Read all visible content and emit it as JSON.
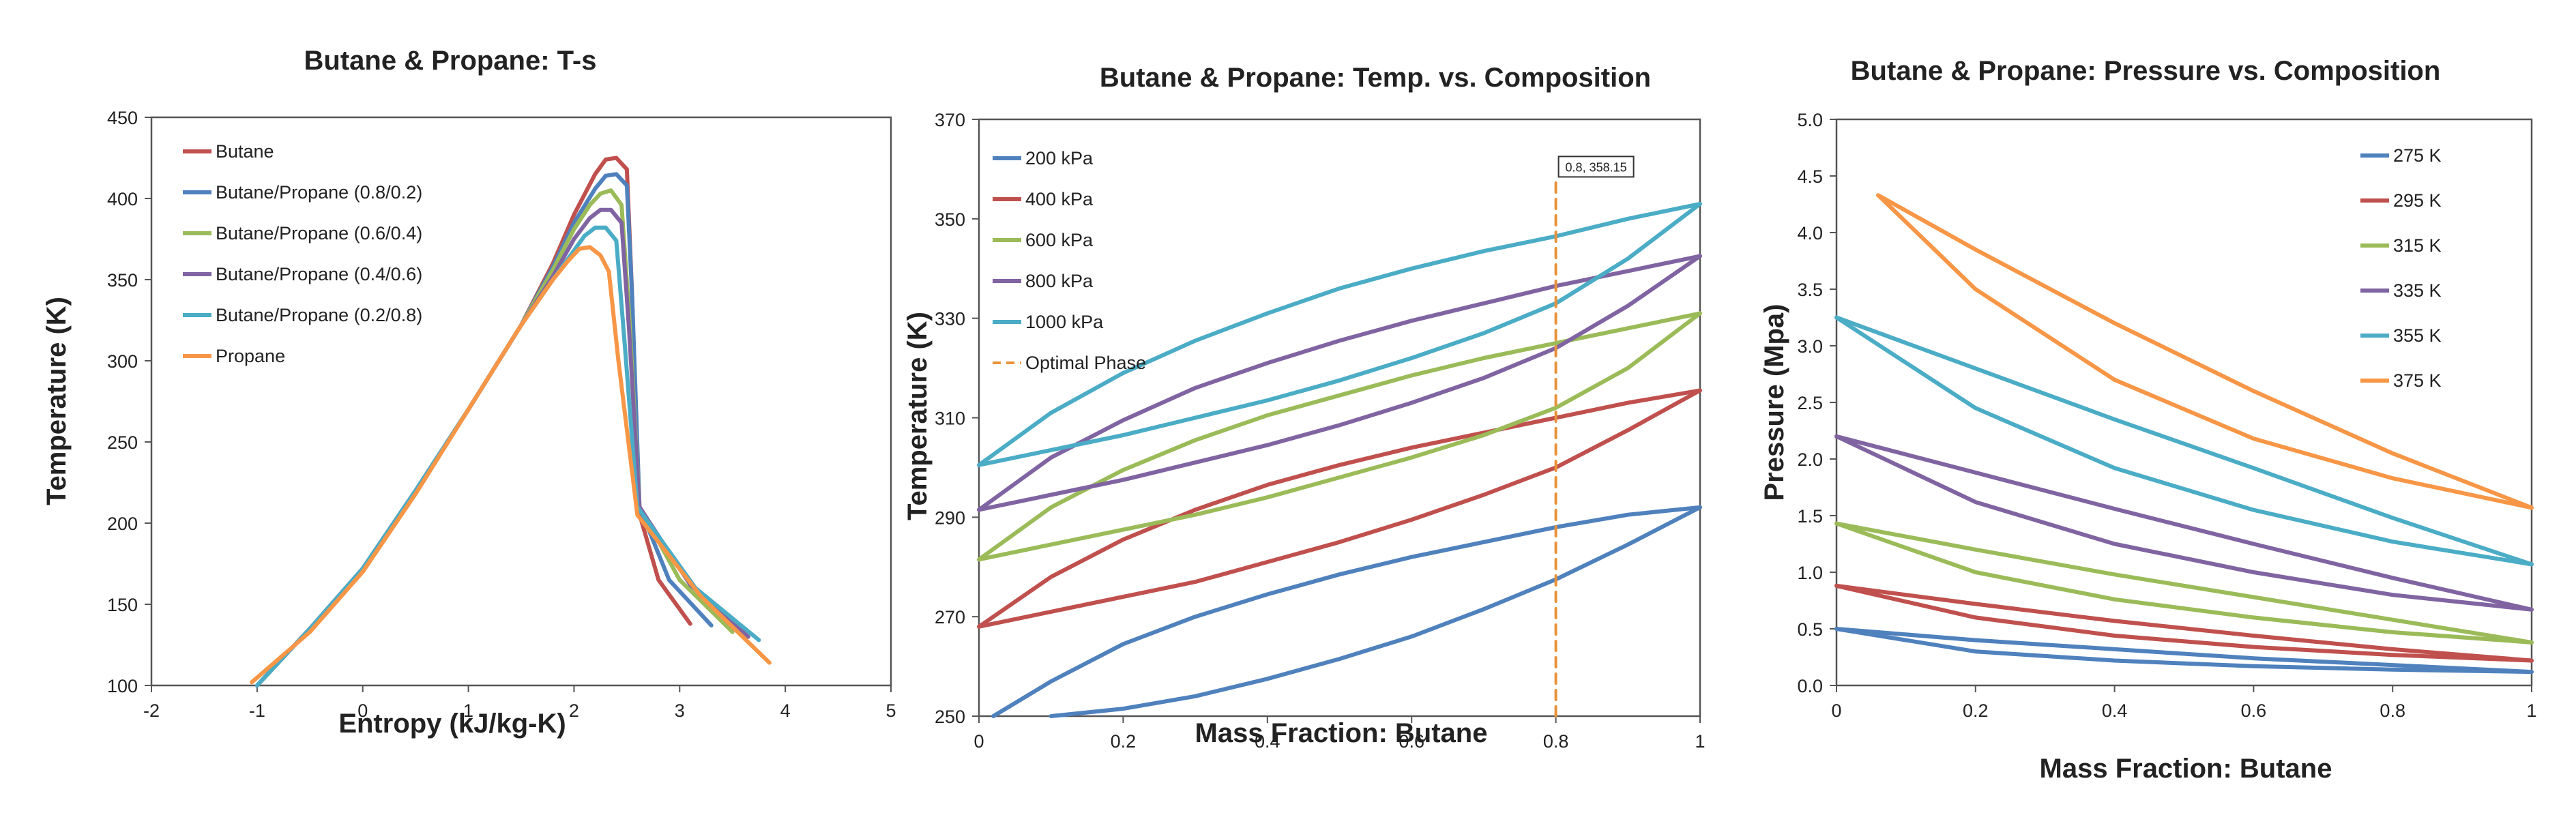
{
  "chart_data": [
    {
      "type": "line",
      "title": "Butane & Propane: T-s",
      "xlabel": "Entropy (kJ/kg-K)",
      "ylabel": "Temperature (K)",
      "xlim": [
        -2,
        5
      ],
      "ylim": [
        100,
        450
      ],
      "x_ticks": [
        "-2",
        "-1",
        "0",
        "1",
        "2",
        "3",
        "4",
        "5"
      ],
      "y_ticks": [
        "100",
        "150",
        "200",
        "250",
        "300",
        "350",
        "400",
        "450"
      ],
      "legend_position": "top-left",
      "series": [
        {
          "name": "Butane",
          "color": "#C0504D",
          "x": [
            -1.0,
            -0.5,
            0.0,
            0.5,
            1.0,
            1.5,
            1.8,
            2.0,
            2.2,
            2.3,
            2.4,
            2.5,
            2.55,
            2.6,
            2.8,
            3.1
          ],
          "y": [
            100,
            135,
            172,
            220,
            270,
            322,
            360,
            390,
            415,
            424,
            425,
            418,
            340,
            210,
            165,
            138
          ]
        },
        {
          "name": "Butane/Propane (0.8/0.2)",
          "color": "#4F81BD",
          "x": [
            -1.0,
            -0.5,
            0.0,
            0.5,
            1.0,
            1.5,
            1.8,
            2.0,
            2.2,
            2.3,
            2.4,
            2.5,
            2.55,
            2.62,
            2.9,
            3.3
          ],
          "y": [
            100,
            135,
            172,
            220,
            270,
            322,
            358,
            385,
            406,
            414,
            415,
            408,
            340,
            210,
            165,
            137
          ]
        },
        {
          "name": "Butane/Propane (0.6/0.4)",
          "color": "#9BBB59",
          "x": [
            -1.0,
            -0.5,
            0.0,
            0.5,
            1.0,
            1.5,
            1.8,
            2.0,
            2.15,
            2.25,
            2.35,
            2.45,
            2.52,
            2.62,
            3.0,
            3.5
          ],
          "y": [
            100,
            135,
            172,
            220,
            270,
            322,
            356,
            381,
            396,
            403,
            405,
            396,
            330,
            210,
            165,
            133
          ]
        },
        {
          "name": "Butane/Propane (0.4/0.6)",
          "color": "#8064A2",
          "x": [
            -1.0,
            -0.5,
            0.0,
            0.5,
            1.0,
            1.5,
            1.8,
            2.0,
            2.15,
            2.25,
            2.35,
            2.45,
            2.52,
            2.62,
            3.1,
            3.65
          ],
          "y": [
            100,
            135,
            172,
            220,
            270,
            322,
            352,
            375,
            388,
            393,
            393,
            385,
            320,
            210,
            162,
            130
          ]
        },
        {
          "name": "Butane/Propane (0.2/0.8)",
          "color": "#4BACC6",
          "x": [
            -1.0,
            -0.5,
            0.0,
            0.5,
            1.0,
            1.5,
            1.8,
            2.0,
            2.1,
            2.2,
            2.3,
            2.4,
            2.48,
            2.6,
            3.15,
            3.75
          ],
          "y": [
            100,
            135,
            172,
            220,
            270,
            322,
            350,
            368,
            377,
            382,
            382,
            374,
            310,
            210,
            160,
            128
          ]
        },
        {
          "name": "Propane",
          "color": "#F79646",
          "x": [
            -1.05,
            -0.5,
            0.0,
            0.5,
            1.0,
            1.5,
            1.8,
            1.95,
            2.05,
            2.15,
            2.25,
            2.33,
            2.42,
            2.6,
            3.2,
            3.85
          ],
          "y": [
            102,
            133,
            170,
            218,
            270,
            322,
            350,
            362,
            369,
            370,
            365,
            355,
            300,
            205,
            155,
            114
          ]
        }
      ]
    },
    {
      "type": "line",
      "title": "Butane & Propane: Temp. vs. Composition",
      "xlabel": "Mass Fraction: Butane",
      "ylabel": "Temperature (K)",
      "xlim": [
        0,
        1
      ],
      "ylim": [
        250,
        370
      ],
      "x_ticks": [
        "0",
        "0.2",
        "0.4",
        "0.6",
        "0.8",
        "1"
      ],
      "y_ticks": [
        "250",
        "270",
        "290",
        "310",
        "330",
        "350",
        "370"
      ],
      "legend_position": "top-left",
      "annotation": {
        "text": "0.8, 358.15",
        "x": 0.8,
        "y": 358.15
      },
      "series": [
        {
          "name": "200 kPa",
          "color": "#4F81BD",
          "lines": [
            {
              "x": [
                0.1,
                0.2,
                0.3,
                0.4,
                0.5,
                0.6,
                0.7,
                0.8,
                0.9,
                1.0
              ],
              "y": [
                250,
                251.5,
                254,
                257.5,
                261.5,
                266,
                271.5,
                277.5,
                284.5,
                292
              ]
            },
            {
              "x": [
                0.02,
                0.1,
                0.2,
                0.3,
                0.4,
                0.5,
                0.6,
                0.7,
                0.8,
                0.9,
                1.0
              ],
              "y": [
                250,
                257,
                264.5,
                270,
                274.5,
                278.5,
                282,
                285,
                288,
                290.5,
                292
              ]
            }
          ]
        },
        {
          "name": "400 kPa",
          "color": "#C0504D",
          "lines": [
            {
              "x": [
                0.0,
                0.1,
                0.2,
                0.3,
                0.4,
                0.5,
                0.6,
                0.7,
                0.8,
                0.9,
                1.0
              ],
              "y": [
                268,
                271,
                274,
                277,
                281,
                285,
                289.5,
                294.5,
                300,
                307.5,
                315.5
              ]
            },
            {
              "x": [
                0.0,
                0.1,
                0.2,
                0.3,
                0.4,
                0.5,
                0.6,
                0.7,
                0.8,
                0.9,
                1.0
              ],
              "y": [
                268,
                278,
                285.5,
                291.5,
                296.5,
                300.5,
                304,
                307,
                310,
                313,
                315.5
              ]
            }
          ]
        },
        {
          "name": "600 kPa",
          "color": "#9BBB59",
          "lines": [
            {
              "x": [
                0.0,
                0.1,
                0.2,
                0.3,
                0.4,
                0.5,
                0.6,
                0.7,
                0.8,
                0.9,
                1.0
              ],
              "y": [
                281.5,
                284.5,
                287.5,
                290.5,
                294,
                298,
                302,
                306.5,
                312,
                320,
                331
              ]
            },
            {
              "x": [
                0.0,
                0.1,
                0.2,
                0.3,
                0.4,
                0.5,
                0.6,
                0.7,
                0.8,
                0.9,
                1.0
              ],
              "y": [
                281.5,
                292,
                299.5,
                305.5,
                310.5,
                314.5,
                318.5,
                322,
                325,
                328,
                331
              ]
            }
          ]
        },
        {
          "name": "800 kPa",
          "color": "#8064A2",
          "lines": [
            {
              "x": [
                0.0,
                0.1,
                0.2,
                0.3,
                0.4,
                0.5,
                0.6,
                0.7,
                0.8,
                0.9,
                1.0
              ],
              "y": [
                291.5,
                294.5,
                297.5,
                301,
                304.5,
                308.5,
                313,
                318,
                324,
                332.5,
                342.5
              ]
            },
            {
              "x": [
                0.0,
                0.1,
                0.2,
                0.3,
                0.4,
                0.5,
                0.6,
                0.7,
                0.8,
                0.9,
                1.0
              ],
              "y": [
                291.5,
                302,
                309.5,
                316,
                321,
                325.5,
                329.5,
                333,
                336.5,
                339.5,
                342.5
              ]
            }
          ]
        },
        {
          "name": "1000 kPa",
          "color": "#4BACC6",
          "lines": [
            {
              "x": [
                0.0,
                0.1,
                0.2,
                0.3,
                0.4,
                0.5,
                0.6,
                0.7,
                0.8,
                0.9,
                1.0
              ],
              "y": [
                300.5,
                303.5,
                306.5,
                310,
                313.5,
                317.5,
                322,
                327,
                333,
                342,
                353
              ]
            },
            {
              "x": [
                0.0,
                0.1,
                0.2,
                0.3,
                0.4,
                0.5,
                0.6,
                0.7,
                0.8,
                0.9,
                1.0
              ],
              "y": [
                300.5,
                311,
                319,
                325.5,
                331,
                336,
                340,
                343.5,
                346.5,
                350,
                353
              ]
            }
          ]
        },
        {
          "name": "Optimal Phase",
          "color": "#E8923A",
          "dashed": true,
          "lines": [
            {
              "x": [
                0.8,
                0.8
              ],
              "y": [
                250,
                358.15
              ]
            }
          ]
        }
      ]
    },
    {
      "type": "line",
      "title": "Butane & Propane: Pressure vs. Composition",
      "xlabel": "Mass Fraction: Butane",
      "ylabel": "Pressure (Mpa)",
      "xlim": [
        0,
        1
      ],
      "ylim": [
        0,
        5
      ],
      "x_ticks": [
        "0",
        "0.2",
        "0.4",
        "0.6",
        "0.8",
        "1"
      ],
      "y_ticks": [
        "0.0",
        "0.5",
        "1.0",
        "1.5",
        "2.0",
        "2.5",
        "3.0",
        "3.5",
        "4.0",
        "4.5",
        "5.0"
      ],
      "legend_position": "top-right",
      "series": [
        {
          "name": "275 K",
          "color": "#4F81BD",
          "lines": [
            {
              "x": [
                0.0,
                0.2,
                0.4,
                0.6,
                0.8,
                1.0
              ],
              "y": [
                0.5,
                0.4,
                0.32,
                0.24,
                0.18,
                0.12
              ]
            },
            {
              "x": [
                0.0,
                0.2,
                0.4,
                0.6,
                0.8,
                1.0
              ],
              "y": [
                0.5,
                0.3,
                0.22,
                0.17,
                0.14,
                0.12
              ]
            }
          ]
        },
        {
          "name": "295 K",
          "color": "#C0504D",
          "lines": [
            {
              "x": [
                0.0,
                0.2,
                0.4,
                0.6,
                0.8,
                1.0
              ],
              "y": [
                0.88,
                0.72,
                0.57,
                0.44,
                0.32,
                0.22
              ]
            },
            {
              "x": [
                0.0,
                0.2,
                0.4,
                0.6,
                0.8,
                1.0
              ],
              "y": [
                0.88,
                0.6,
                0.44,
                0.34,
                0.27,
                0.22
              ]
            }
          ]
        },
        {
          "name": "315 K",
          "color": "#9BBB59",
          "lines": [
            {
              "x": [
                0.0,
                0.2,
                0.4,
                0.6,
                0.8,
                1.0
              ],
              "y": [
                1.43,
                1.2,
                0.98,
                0.78,
                0.58,
                0.38
              ]
            },
            {
              "x": [
                0.0,
                0.2,
                0.4,
                0.6,
                0.8,
                1.0
              ],
              "y": [
                1.43,
                1.0,
                0.76,
                0.6,
                0.47,
                0.38
              ]
            }
          ]
        },
        {
          "name": "335 K",
          "color": "#8064A2",
          "lines": [
            {
              "x": [
                0.0,
                0.2,
                0.4,
                0.6,
                0.8,
                1.0
              ],
              "y": [
                2.2,
                1.88,
                1.56,
                1.25,
                0.95,
                0.67
              ]
            },
            {
              "x": [
                0.0,
                0.2,
                0.4,
                0.6,
                0.8,
                1.0
              ],
              "y": [
                2.2,
                1.62,
                1.25,
                1.0,
                0.8,
                0.67
              ]
            }
          ]
        },
        {
          "name": "355 K",
          "color": "#4BACC6",
          "lines": [
            {
              "x": [
                0.0,
                0.2,
                0.4,
                0.6,
                0.8,
                1.0
              ],
              "y": [
                3.25,
                2.8,
                2.35,
                1.92,
                1.48,
                1.07
              ]
            },
            {
              "x": [
                0.0,
                0.2,
                0.4,
                0.6,
                0.8,
                1.0
              ],
              "y": [
                3.25,
                2.45,
                1.92,
                1.55,
                1.27,
                1.07
              ]
            }
          ]
        },
        {
          "name": "375 K",
          "color": "#F79646",
          "lines": [
            {
              "x": [
                0.06,
                0.2,
                0.4,
                0.6,
                0.8,
                1.0
              ],
              "y": [
                4.33,
                3.85,
                3.2,
                2.6,
                2.05,
                1.57
              ]
            },
            {
              "x": [
                0.06,
                0.2,
                0.4,
                0.6,
                0.8,
                1.0
              ],
              "y": [
                4.33,
                3.5,
                2.7,
                2.18,
                1.83,
                1.57
              ]
            }
          ]
        }
      ]
    }
  ]
}
